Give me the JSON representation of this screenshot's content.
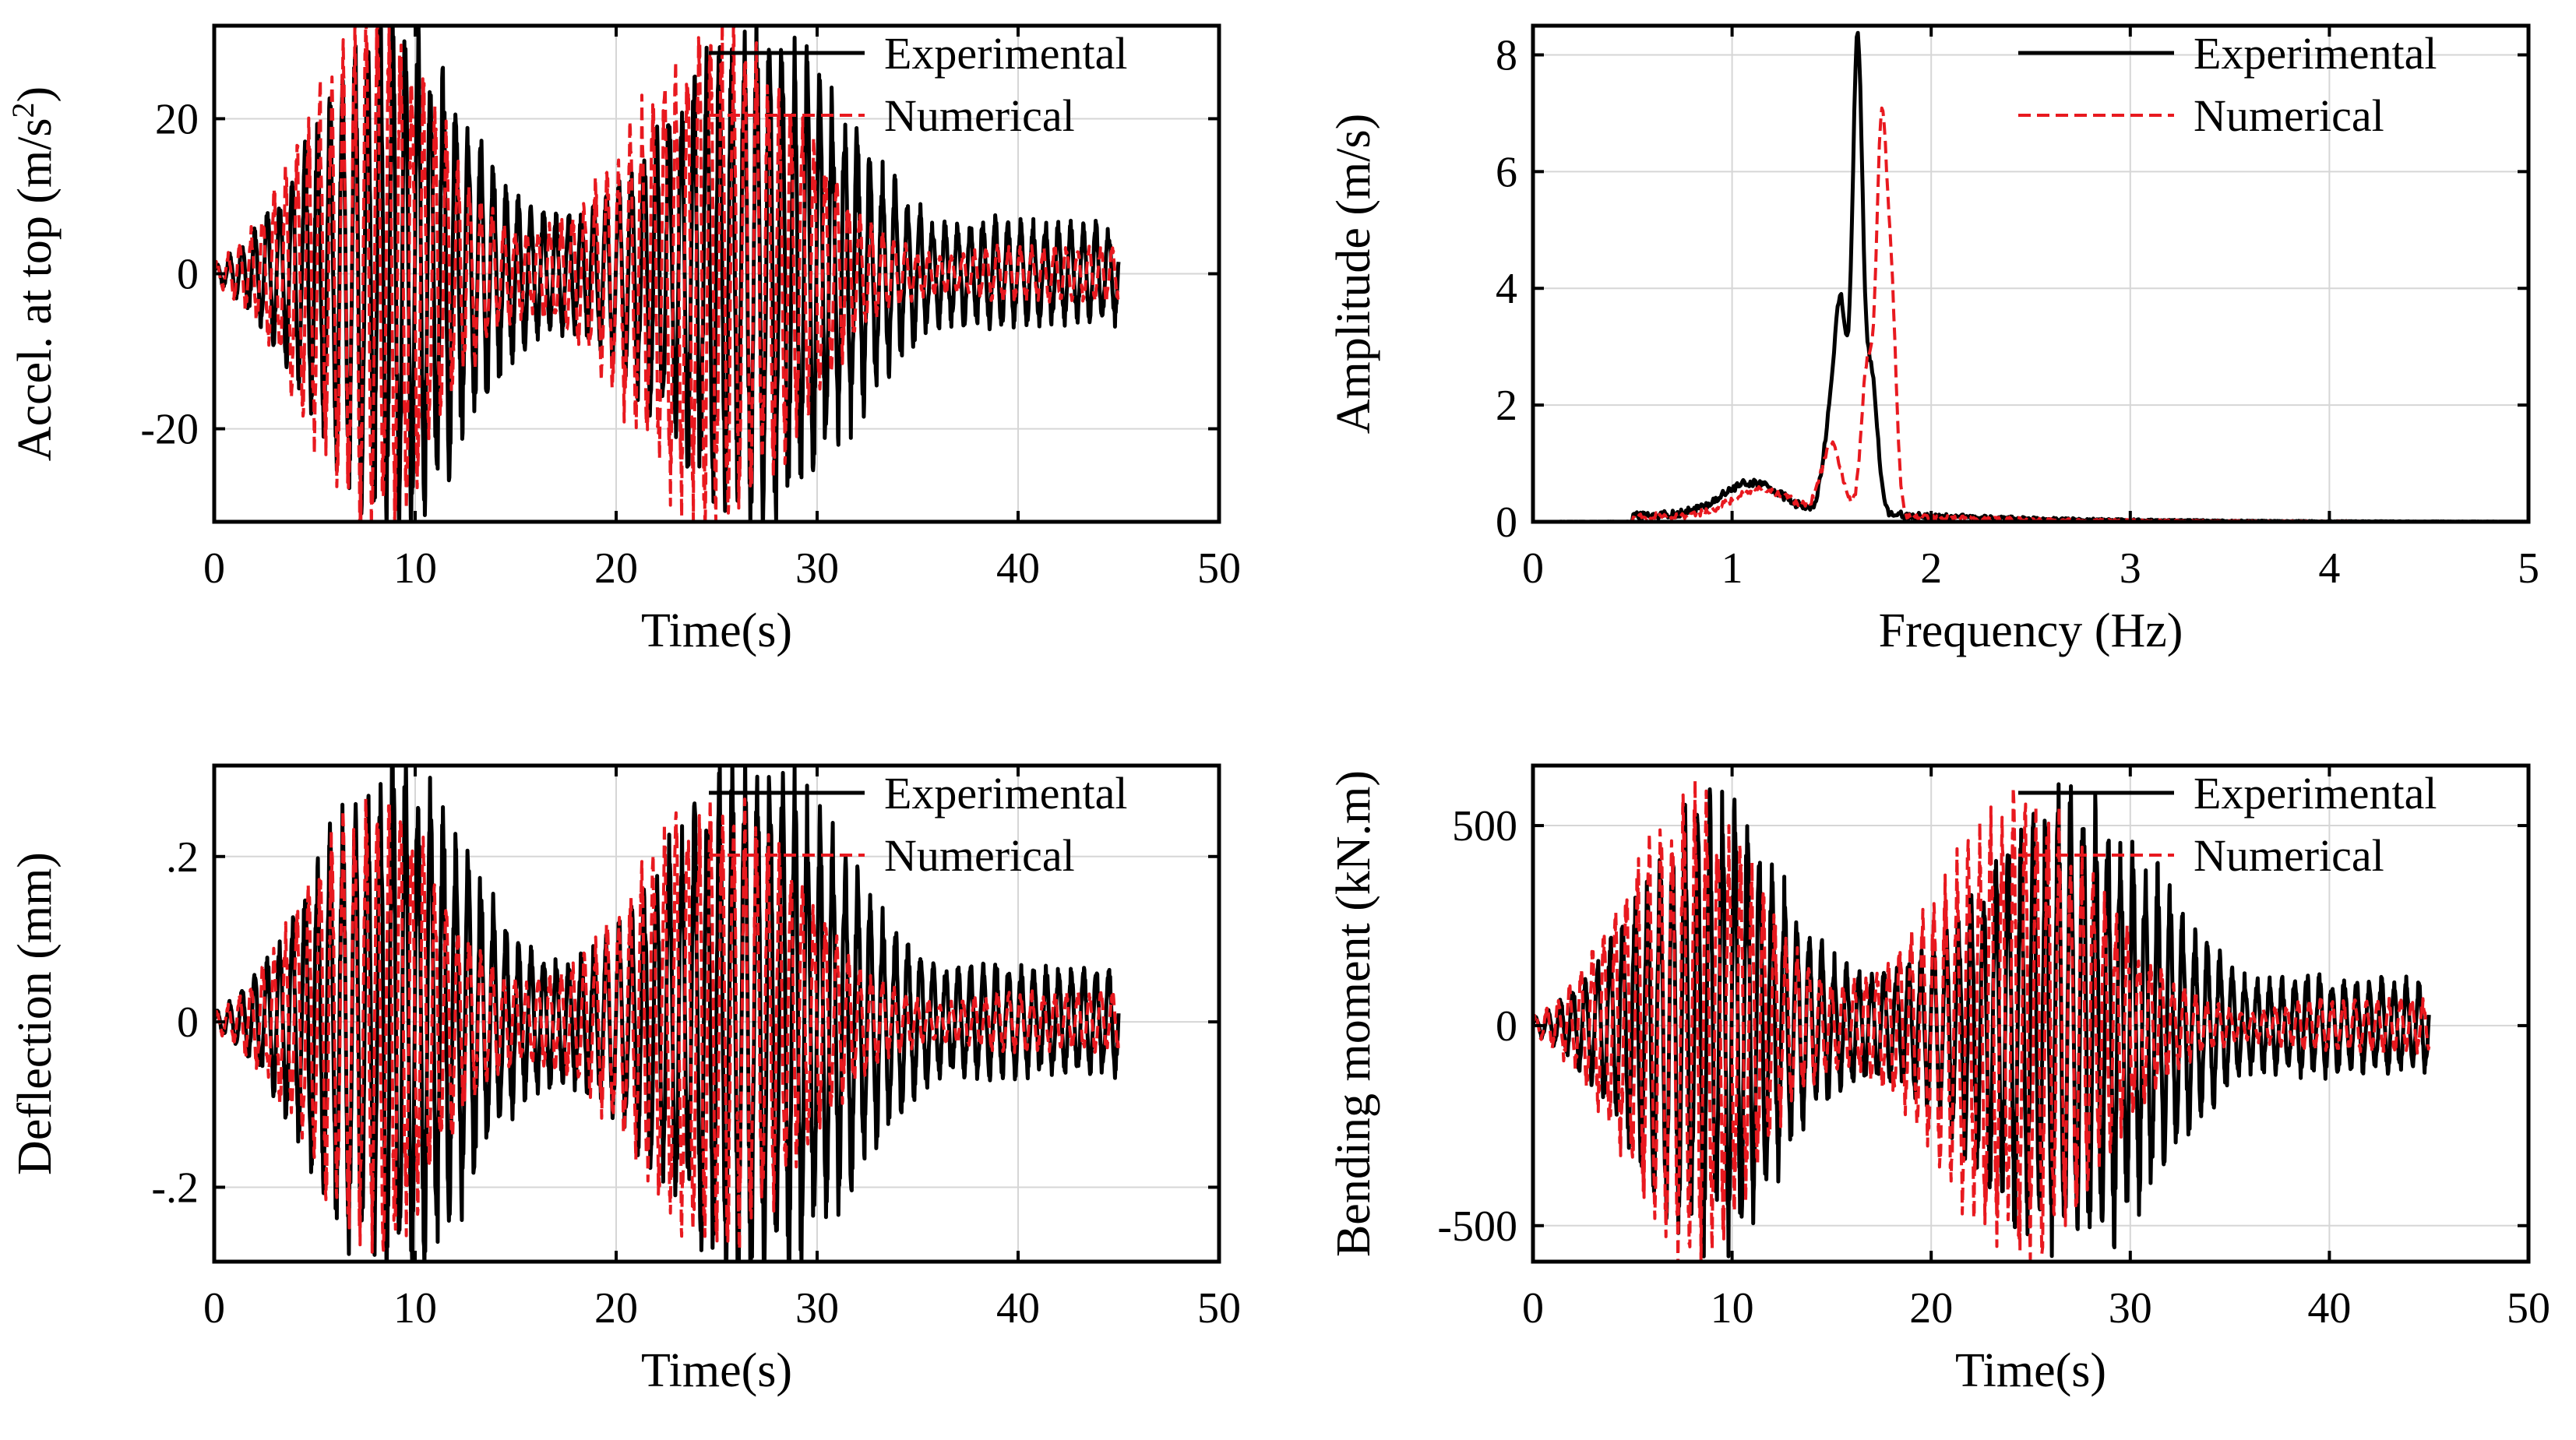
{
  "chart_data": [
    {
      "id": "accel",
      "type": "line",
      "ylabel": "Accel. at top (m/s",
      "ylabel_sup": "2",
      "ylabel_tail": ")",
      "xlabel": "Time(s)",
      "xlim": [
        0,
        50
      ],
      "ylim": [
        -32,
        32
      ],
      "xticks": [
        0,
        10,
        20,
        30,
        40,
        50
      ],
      "yticks": [
        -20,
        0,
        20
      ],
      "legend": [
        "Experimental",
        "Numerical"
      ],
      "legend_position": "top-right",
      "series": [
        {
          "name": "Experimental",
          "color": "#000000",
          "style": "solid",
          "duration": 45,
          "freq": 1.6,
          "bursts": [
            {
              "center": 9,
              "width": 3.5,
              "amp": 26
            },
            {
              "center": 27,
              "width": 4.5,
              "amp": 25
            }
          ],
          "floor": 2.5,
          "tail": 3
        },
        {
          "name": "Numerical",
          "color": "#e8191f",
          "style": "dashed",
          "duration": 45,
          "freq": 1.75,
          "bursts": [
            {
              "center": 8,
              "width": 3.2,
              "amp": 27
            },
            {
              "center": 25,
              "width": 4.0,
              "amp": 27
            }
          ],
          "floor": 1.5,
          "tail": 1.5
        }
      ]
    },
    {
      "id": "fft",
      "type": "line",
      "ylabel": "Amplitude (m/s)",
      "xlabel": "Frequency (Hz)",
      "xlim": [
        0,
        5
      ],
      "ylim": [
        0,
        8.5
      ],
      "xticks": [
        0,
        1,
        2,
        3,
        4,
        5
      ],
      "yticks": [
        0,
        2,
        4,
        6,
        8
      ],
      "legend": [
        "Experimental",
        "Numerical"
      ],
      "legend_position": "top-right",
      "series": [
        {
          "name": "Experimental",
          "color": "#000000",
          "style": "solid",
          "spectrum": true,
          "peaks": [
            {
              "f": 1.63,
              "amp": 8.0,
              "w": 0.025
            },
            {
              "f": 1.55,
              "amp": 2.9,
              "w": 0.03
            },
            {
              "f": 1.5,
              "amp": 1.6,
              "w": 0.04
            },
            {
              "f": 1.7,
              "amp": 2.4,
              "w": 0.03
            },
            {
              "f": 1.1,
              "amp": 0.55,
              "w": 0.15
            }
          ],
          "noise": 0.12
        },
        {
          "name": "Numerical",
          "color": "#e8191f",
          "style": "dashed",
          "spectrum": true,
          "peaks": [
            {
              "f": 1.75,
              "amp": 6.3,
              "w": 0.025
            },
            {
              "f": 1.68,
              "amp": 2.6,
              "w": 0.03
            },
            {
              "f": 1.8,
              "amp": 3.6,
              "w": 0.025
            },
            {
              "f": 1.5,
              "amp": 1.2,
              "w": 0.05
            },
            {
              "f": 1.15,
              "amp": 0.45,
              "w": 0.15
            }
          ],
          "noise": 0.1
        }
      ]
    },
    {
      "id": "deflection",
      "type": "line",
      "ylabel": "Deflection (mm)",
      "xlabel": "Time(s)",
      "xlim": [
        0,
        50
      ],
      "ylim": [
        -0.29,
        0.31
      ],
      "xticks": [
        0,
        10,
        20,
        30,
        40,
        50
      ],
      "yticks": [
        -0.2,
        0,
        0.2
      ],
      "legend": [
        "Experimental",
        "Numerical"
      ],
      "legend_position": "top-right",
      "series": [
        {
          "name": "Experimental",
          "color": "#000000",
          "style": "solid",
          "duration": 45,
          "freq": 1.6,
          "bursts": [
            {
              "center": 9,
              "width": 3.5,
              "amp": 0.26
            },
            {
              "center": 27,
              "width": 4.5,
              "amp": 0.25
            }
          ],
          "floor": 0.025,
          "tail": 0.03
        },
        {
          "name": "Numerical",
          "color": "#e8191f",
          "style": "dashed",
          "duration": 45,
          "freq": 1.75,
          "bursts": [
            {
              "center": 8,
              "width": 3.2,
              "amp": 0.22
            },
            {
              "center": 25,
              "width": 4.0,
              "amp": 0.22
            }
          ],
          "floor": 0.015,
          "tail": 0.015
        }
      ]
    },
    {
      "id": "moment",
      "type": "line",
      "ylabel": "Bending moment (kN.m)",
      "xlabel": "Time(s)",
      "xlim": [
        0,
        50
      ],
      "ylim": [
        -590,
        650
      ],
      "xticks": [
        0,
        10,
        20,
        30,
        40,
        50
      ],
      "yticks": [
        -500,
        0,
        500
      ],
      "legend": [
        "Experimental",
        "Numerical"
      ],
      "legend_position": "top-right",
      "series": [
        {
          "name": "Experimental",
          "color": "#000000",
          "style": "solid",
          "duration": 45,
          "freq": 1.6,
          "bursts": [
            {
              "center": 9,
              "width": 3.5,
              "amp": 440
            },
            {
              "center": 27,
              "width": 4.5,
              "amp": 460
            }
          ],
          "floor": 40,
          "tail": 60
        },
        {
          "name": "Numerical",
          "color": "#e8191f",
          "style": "dashed",
          "duration": 45,
          "freq": 1.75,
          "bursts": [
            {
              "center": 8,
              "width": 3.2,
              "amp": 480
            },
            {
              "center": 24.5,
              "width": 4.0,
              "amp": 470
            }
          ],
          "floor": 25,
          "tail": 30
        }
      ]
    }
  ]
}
